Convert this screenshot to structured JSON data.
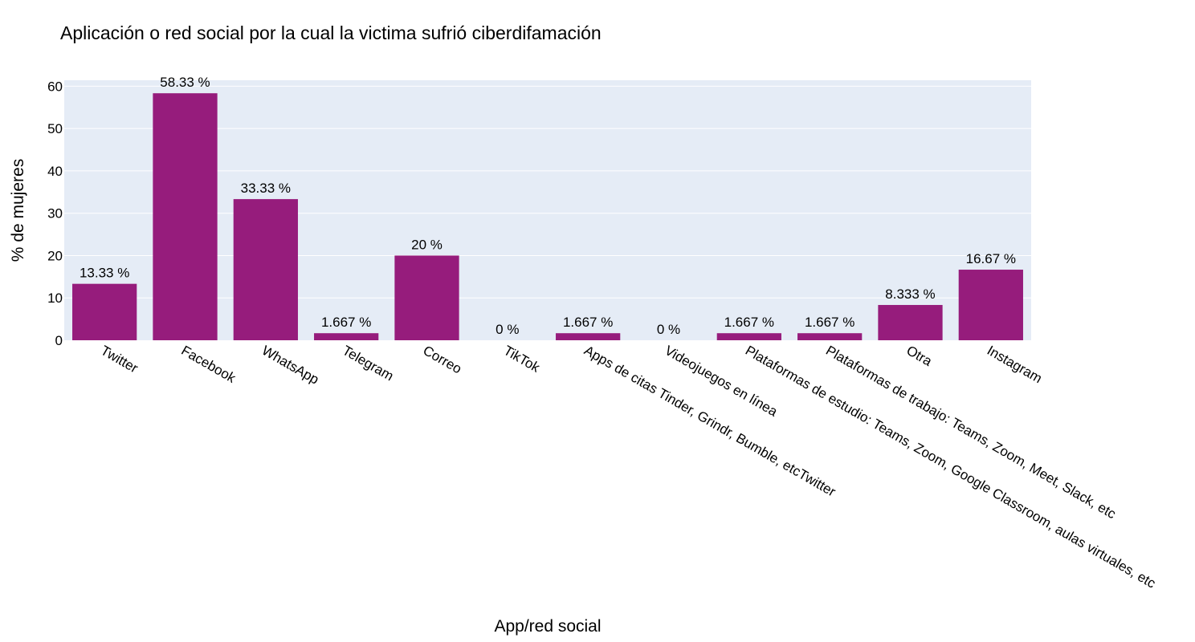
{
  "chart_data": {
    "type": "bar",
    "title": "Aplicación o red social por la cual la victima sufrió ciberdifamación",
    "xlabel": "App/red social",
    "ylabel": "% de mujeres",
    "categories": [
      "Twitter",
      "Facebook",
      "WhatsApp",
      "Telegram",
      "Correo",
      "TikTok",
      "Apps de citas Tinder, Grindr, Bumble, etcTwitter",
      "Videojuegos en línea",
      "Plataformas de estudio: Teams, Zoom, Google Classroom, aulas virtuales, etc",
      "Plataformas de trabajo: Teams, Zoom, Meet, Slack, etc",
      "Otra",
      "Instagram"
    ],
    "values": [
      13.33,
      58.33,
      33.33,
      1.667,
      20,
      0,
      1.667,
      0,
      1.667,
      1.667,
      8.333,
      16.67
    ],
    "data_labels": [
      "13.33 %",
      "58.33 %",
      "33.33 %",
      "1.667 %",
      "20 %",
      "0 %",
      "1.667 %",
      "0 %",
      "1.667 %",
      "1.667 %",
      "8.333 %",
      "16.67 %"
    ],
    "ylim": [
      0,
      61.4
    ],
    "yticks": [
      0,
      10,
      20,
      30,
      40,
      50,
      60
    ],
    "grid": true,
    "legend": "none",
    "colors": {
      "bar": "#961c7c",
      "plot_background": "#e5ecf6",
      "grid": "#ffffff"
    }
  }
}
